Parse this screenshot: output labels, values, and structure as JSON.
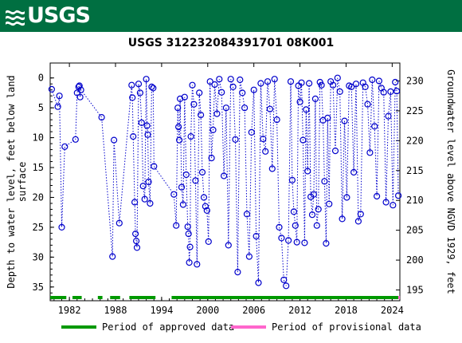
{
  "header": {
    "logo_text": "USGS"
  },
  "chart_data": {
    "type": "scatter",
    "title": "USGS 312232084391701 08K001",
    "ylabel_left": [
      "Depth to water level, feet below land",
      "surface"
    ],
    "ylabel_right": "Groundwater level above NGVD 1929, feet",
    "xlim": [
      1979.5,
      2025.0
    ],
    "ylim_left": [
      -2.5,
      37.3
    ],
    "ylim_right": [
      233.0,
      193.2
    ],
    "inverted_left_axis": true,
    "x_ticks": [
      "1982",
      "1988",
      "1994",
      "2000",
      "2006",
      "2012",
      "2018",
      "2024"
    ],
    "y_ticks_left": [
      "0",
      "5",
      "10",
      "15",
      "20",
      "25",
      "30",
      "35"
    ],
    "y_ticks_right": [
      "195",
      "200",
      "205",
      "210",
      "215",
      "220",
      "225",
      "230"
    ],
    "marker_color": "#0000cc",
    "series": [
      {
        "x": [
          1979.7,
          1980.5,
          1980.7,
          1981.0,
          1981.4,
          1982.8,
          1983.0,
          1983.2,
          1983.3,
          1983.4,
          1983.5,
          1986.2,
          1987.6,
          1987.8,
          1988.5,
          1990.1,
          1990.2,
          1990.3,
          1990.5,
          1990.6,
          1990.7,
          1990.8,
          1991.0,
          1991.2,
          1991.4,
          1991.6,
          1991.8,
          1992.0,
          1992.1,
          1992.2,
          1992.3,
          1992.5,
          1992.7,
          1992.9,
          1993.0,
          1995.6,
          1995.9,
          1996.1,
          1996.2,
          1996.3,
          1996.4,
          1996.6,
          1996.8,
          1997.0,
          1997.2,
          1997.4,
          1997.5,
          1997.6,
          1997.7,
          1997.8,
          1998.0,
          1998.2,
          1998.4,
          1998.6,
          1998.9,
          1999.1,
          1999.3,
          1999.5,
          1999.7,
          1999.9,
          2000.1,
          2000.3,
          2000.5,
          2000.7,
          2000.9,
          2001.2,
          2001.5,
          2001.8,
          2002.1,
          2002.4,
          2002.7,
          2003.0,
          2003.3,
          2003.6,
          2003.9,
          2004.2,
          2004.5,
          2004.8,
          2005.1,
          2005.4,
          2005.7,
          2006.0,
          2006.3,
          2006.6,
          2006.9,
          2007.2,
          2007.5,
          2007.8,
          2008.1,
          2008.4,
          2008.7,
          2009.0,
          2009.3,
          2009.6,
          2009.9,
          2010.2,
          2010.5,
          2010.8,
          2011.0,
          2011.2,
          2011.4,
          2011.6,
          2011.8,
          2012.0,
          2012.2,
          2012.4,
          2012.6,
          2012.8,
          2013.0,
          2013.2,
          2013.4,
          2013.6,
          2013.8,
          2014.0,
          2014.2,
          2014.4,
          2014.6,
          2014.8,
          2015.0,
          2015.2,
          2015.4,
          2015.6,
          2015.8,
          2016.0,
          2016.3,
          2016.6,
          2016.9,
          2017.2,
          2017.5,
          2017.8,
          2018.1,
          2018.4,
          2018.7,
          2019.0,
          2019.3,
          2019.6,
          2019.9,
          2020.2,
          2020.5,
          2020.8,
          2021.1,
          2021.4,
          2021.7,
          2022.0,
          2022.3,
          2022.6,
          2022.9,
          2023.2,
          2023.5,
          2023.8,
          2024.1,
          2024.4,
          2024.6,
          2024.8
        ],
        "y": [
          1.9,
          4.8,
          3.0,
          25.0,
          11.5,
          10.3,
          2.5,
          1.5,
          1.3,
          3.2,
          2.0,
          6.6,
          29.9,
          10.4,
          24.3,
          1.2,
          3.3,
          9.8,
          20.8,
          26.1,
          27.3,
          28.4,
          1.0,
          2.5,
          7.5,
          18.1,
          20.3,
          0.2,
          8.0,
          9.5,
          17.4,
          21.0,
          1.5,
          1.7,
          14.8,
          19.5,
          24.7,
          5.0,
          8.2,
          10.4,
          3.5,
          18.3,
          21.2,
          3.2,
          16.2,
          24.9,
          26.1,
          30.9,
          28.3,
          9.8,
          1.2,
          4.4,
          17.2,
          31.2,
          2.5,
          6.2,
          15.8,
          20.0,
          21.5,
          22.2,
          27.4,
          0.6,
          13.4,
          8.7,
          1.1,
          6.0,
          0.2,
          2.4,
          16.4,
          5.0,
          28.0,
          0.2,
          1.5,
          10.3,
          32.5,
          0.3,
          2.5,
          5.0,
          22.8,
          29.9,
          9.1,
          2.0,
          26.5,
          34.3,
          0.9,
          10.2,
          12.3,
          0.6,
          5.2,
          15.2,
          0.2,
          7.0,
          25.0,
          26.8,
          33.8,
          34.8,
          27.2,
          0.6,
          17.1,
          22.4,
          24.7,
          27.5,
          1.3,
          4.0,
          0.8,
          10.4,
          27.6,
          5.3,
          15.6,
          0.9,
          19.9,
          22.9,
          19.5,
          3.5,
          24.7,
          22.0,
          0.7,
          1.2,
          7.1,
          17.3,
          27.7,
          6.7,
          21.1,
          0.6,
          1.2,
          12.2,
          0.0,
          2.3,
          23.6,
          7.2,
          20.0,
          1.3,
          1.5,
          15.8,
          1.0,
          24.0,
          22.8,
          0.8,
          1.5,
          4.4,
          12.5,
          0.3,
          8.1,
          19.8,
          0.5,
          1.7,
          2.4,
          20.8,
          6.4,
          2.3,
          21.3,
          0.7,
          2.2,
          19.7
        ]
      }
    ],
    "legend": [
      {
        "label": "Period of approved data",
        "color": "#009900"
      },
      {
        "label": "Period of provisional data",
        "color": "#ff66cc"
      }
    ],
    "approved_periods": [
      [
        1979.5,
        1981.6
      ],
      [
        1982.4,
        1983.6
      ],
      [
        1985.7,
        1986.3
      ],
      [
        1987.3,
        1988.6
      ],
      [
        1989.8,
        1993.2
      ],
      [
        1995.3,
        2024.8
      ]
    ],
    "provisional_periods": [
      [
        2024.8,
        2025.0
      ]
    ]
  }
}
